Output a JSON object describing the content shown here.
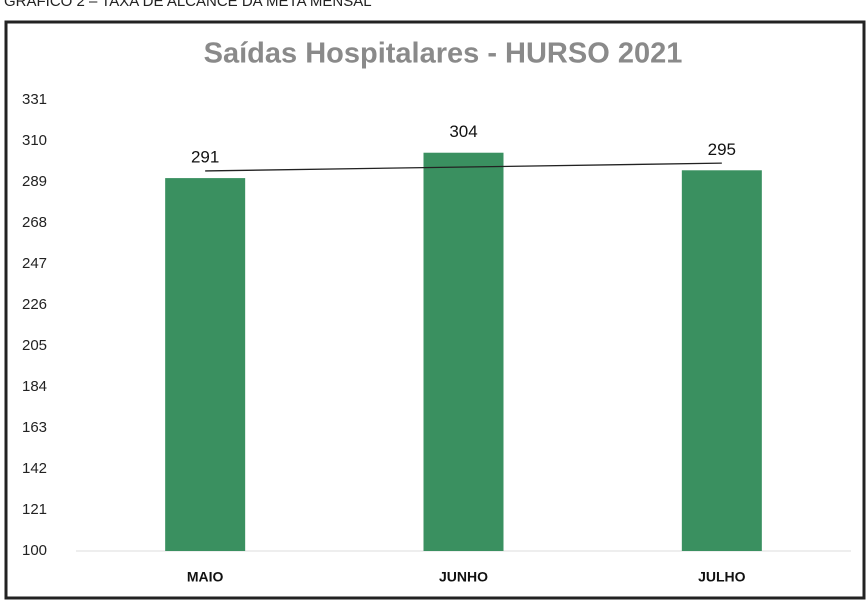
{
  "header": "GRÁFICO 2 – TAXA DE ALCANCE DA META MENSAL",
  "chart_data": {
    "type": "bar",
    "title": "Saídas Hospitalares - HURSO 2021",
    "categories": [
      "MAIO",
      "JUNHO",
      "JULHO"
    ],
    "values": [
      291,
      304,
      295
    ],
    "color": "#3a9060",
    "ylim": [
      100,
      331
    ],
    "yticks": [
      100,
      121,
      142,
      163,
      184,
      205,
      226,
      247,
      268,
      289,
      310,
      331
    ],
    "grid": false,
    "trendline": true
  }
}
